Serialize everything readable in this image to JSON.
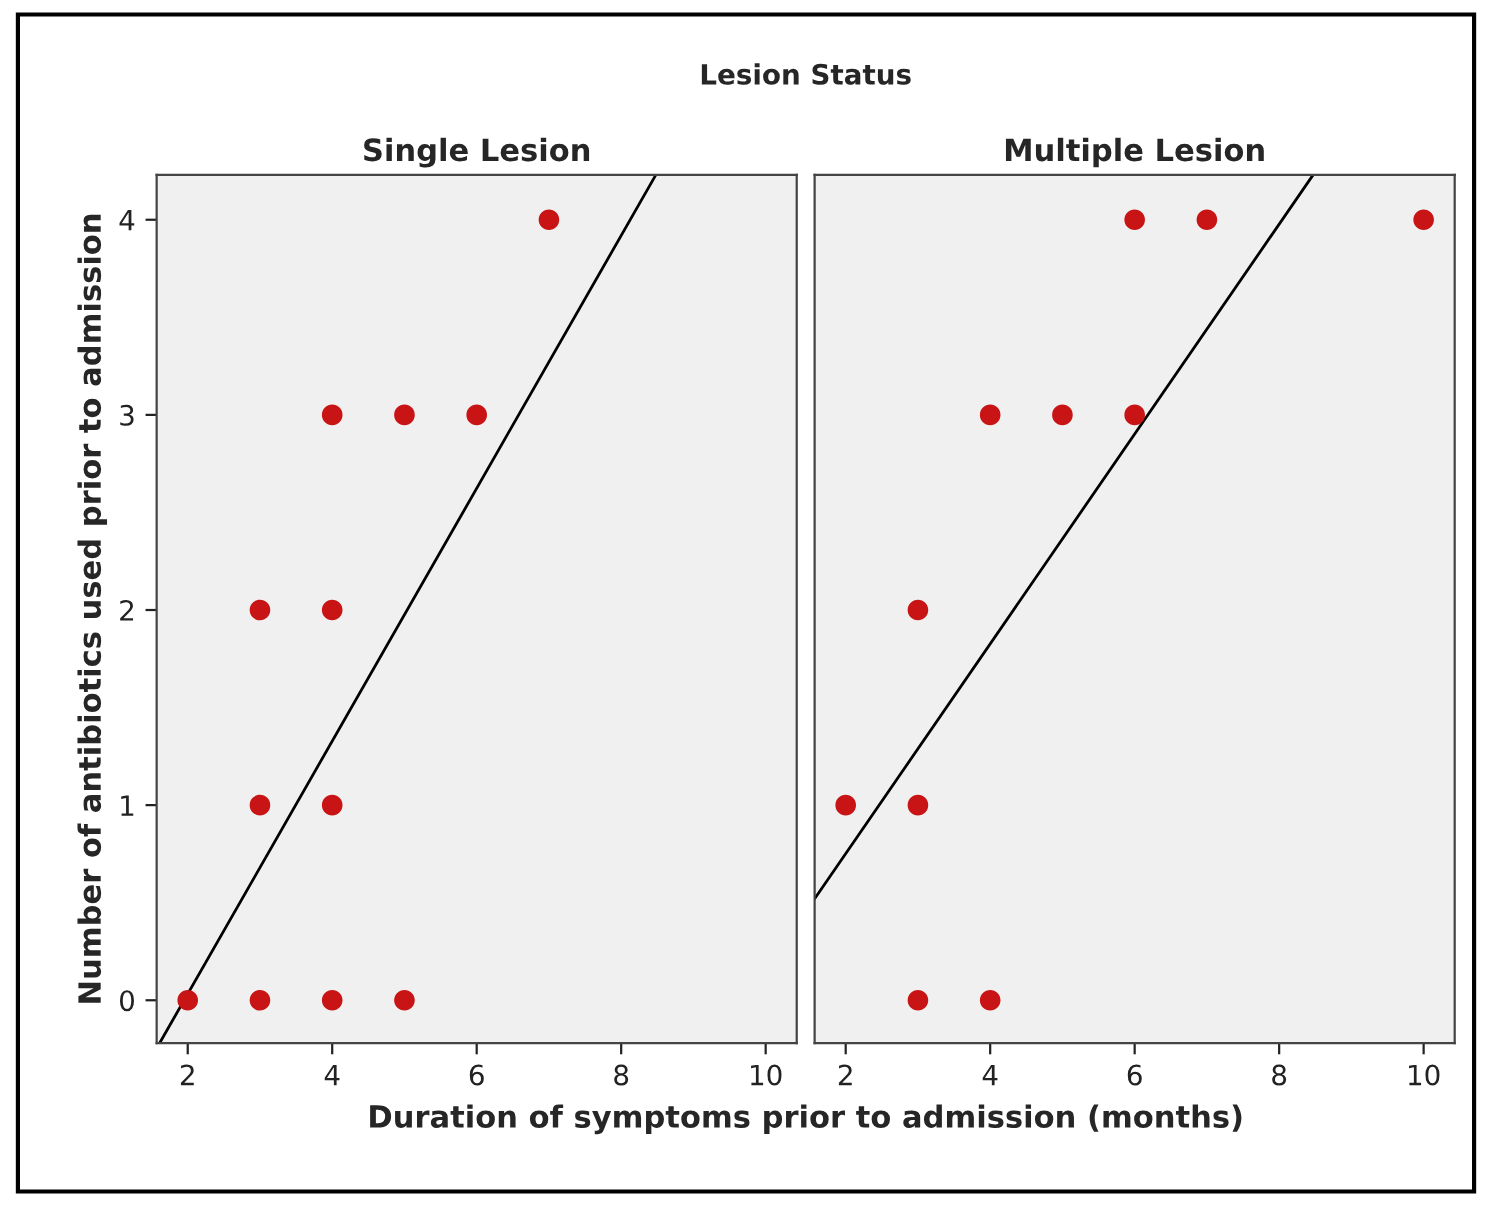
{
  "chart_data": [
    {
      "type": "scatter",
      "title": "Single Lesion",
      "xlabel": "Duration of symptoms prior to admission (months)",
      "ylabel": "Number of antibiotics used prior to admission",
      "annotations": [
        "Lesion Status"
      ],
      "xlim": [
        1.57,
        10.43
      ],
      "ylim": [
        -0.22,
        4.23
      ],
      "xticks": [
        2,
        4,
        6,
        8,
        10
      ],
      "yticks": [
        0,
        1,
        2,
        3,
        4
      ],
      "grid": false,
      "series": [
        {
          "color": "#c81414",
          "marker": "circle",
          "x": [
            2,
            3,
            4,
            5,
            3,
            4,
            3,
            4,
            4,
            5,
            6,
            7
          ],
          "values": [
            0,
            0,
            0,
            0,
            1,
            1,
            2,
            2,
            3,
            3,
            3,
            4
          ]
        },
        {
          "type": "line",
          "color": "#000000",
          "marker": "none",
          "x": [
            1.61,
            8.48
          ],
          "values": [
            -0.22,
            4.23
          ]
        }
      ]
    },
    {
      "type": "scatter",
      "title": "Multiple Lesion",
      "xlim": [
        1.57,
        10.43
      ],
      "ylim": [
        -0.22,
        4.23
      ],
      "xticks": [
        2,
        4,
        6,
        8,
        10
      ],
      "yticks": [
        0,
        1,
        2,
        3,
        4
      ],
      "tick_labels": "x",
      "grid": false,
      "series": [
        {
          "color": "#c81414",
          "marker": "circle",
          "x": [
            3,
            4,
            2,
            3,
            3,
            4,
            5,
            6,
            6,
            7,
            10
          ],
          "values": [
            0,
            0,
            1,
            1,
            2,
            3,
            3,
            3,
            4,
            4,
            4
          ]
        },
        {
          "type": "line",
          "color": "#000000",
          "marker": "none",
          "x": [
            1.57,
            8.47
          ],
          "values": [
            0.52,
            4.23
          ]
        }
      ]
    }
  ]
}
